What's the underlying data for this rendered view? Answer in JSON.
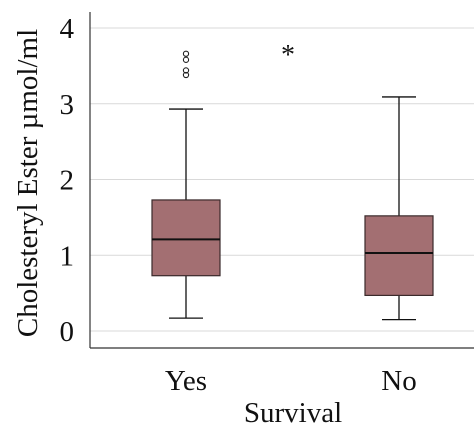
{
  "chart_data": {
    "type": "box",
    "title": "",
    "xlabel": "Survival",
    "ylabel": "Cholesteryl Ester µmol/ml",
    "ylim": [
      0,
      4
    ],
    "yticks": [
      "0",
      "1",
      "2",
      "3",
      "4"
    ],
    "grid": true,
    "categories": [
      "Yes",
      "No"
    ],
    "boxes": [
      {
        "category": "Yes",
        "whisker_low": 0.17,
        "q1": 0.73,
        "median": 1.21,
        "q3": 1.73,
        "whisker_high": 2.93,
        "outliers": [
          3.38,
          3.44,
          3.58,
          3.66
        ]
      },
      {
        "category": "No",
        "whisker_low": 0.15,
        "q1": 0.47,
        "median": 1.03,
        "q3": 1.52,
        "whisker_high": 3.09,
        "outliers": []
      }
    ],
    "annotations": [
      "*"
    ],
    "colors": {
      "box_fill": "#a36f72",
      "box_stroke": "#3a2a2b",
      "median": "#111111",
      "whisker": "#111111",
      "grid": "#d9d9d9",
      "axis": "#333333",
      "outlier": "#222222"
    }
  }
}
